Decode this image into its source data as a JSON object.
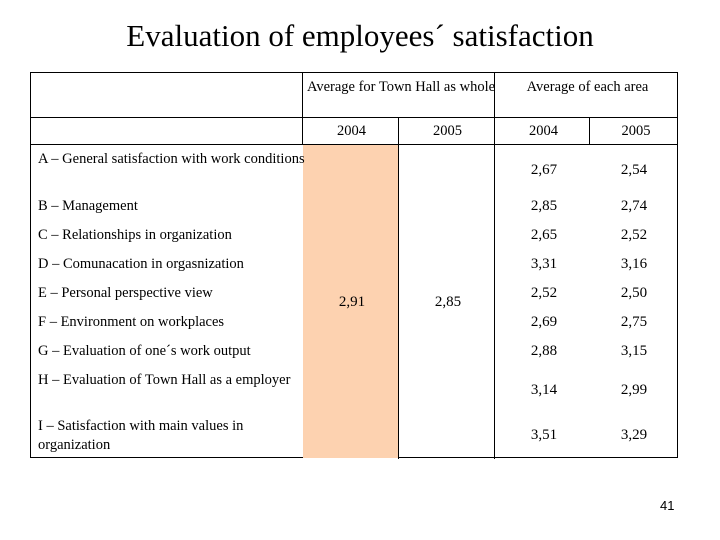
{
  "slide": {
    "title": "Evaluation of employees´ satisfaction",
    "page_number": "41"
  },
  "table": {
    "group_headers": [
      "Average for Town Hall as whole",
      "Average of each area"
    ],
    "year_headers": [
      "2004",
      "2005",
      "2004",
      "2005"
    ],
    "town_hall": {
      "y2004": "2,91",
      "y2005": "2,85"
    },
    "rows": [
      {
        "label": "A – General satisfaction with work conditions",
        "y2004": "2,67",
        "y2005": "2,54"
      },
      {
        "label": "B – Management",
        "y2004": "2,85",
        "y2005": "2,74"
      },
      {
        "label": "C – Relationships in organization",
        "y2004": "2,65",
        "y2005": "2,52"
      },
      {
        "label": "D – Comunacation in orgasnization",
        "y2004": "3,31",
        "y2005": "3,16"
      },
      {
        "label": "E – Personal perspective view",
        "y2004": "2,52",
        "y2005": "2,50"
      },
      {
        "label": "F – Environment on workplaces",
        "y2004": "2,69",
        "y2005": "2,75"
      },
      {
        "label": "G – Evaluation of one´s work output",
        "y2004": "2,88",
        "y2005": "3,15"
      },
      {
        "label": "H – Evaluation of Town Hall as a employer",
        "y2004": "3,14",
        "y2005": "2,99"
      },
      {
        "label": "I – Satisfaction with main values in organization",
        "y2004": "3,51",
        "y2005": "3,29"
      }
    ]
  },
  "colors": {
    "highlight": "#fdd2b0"
  }
}
